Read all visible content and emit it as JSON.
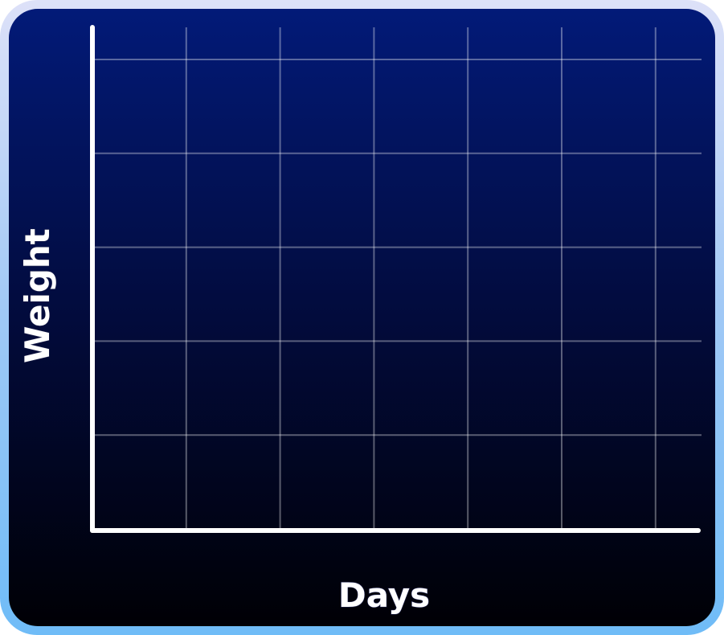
{
  "chart_data": {
    "type": "line",
    "title": "",
    "xlabel": "Days",
    "ylabel": "Weight",
    "x": [],
    "series": [],
    "grid": true,
    "vertical_gridlines": 6,
    "horizontal_gridlines": 5,
    "colors": {
      "frame_top": "#dde1f8",
      "frame_bottom": "#6fbcf7",
      "panel_top": "#021a78",
      "panel_bottom": "#000005",
      "axis": "#ffffff",
      "grid": "#ffffff"
    }
  }
}
